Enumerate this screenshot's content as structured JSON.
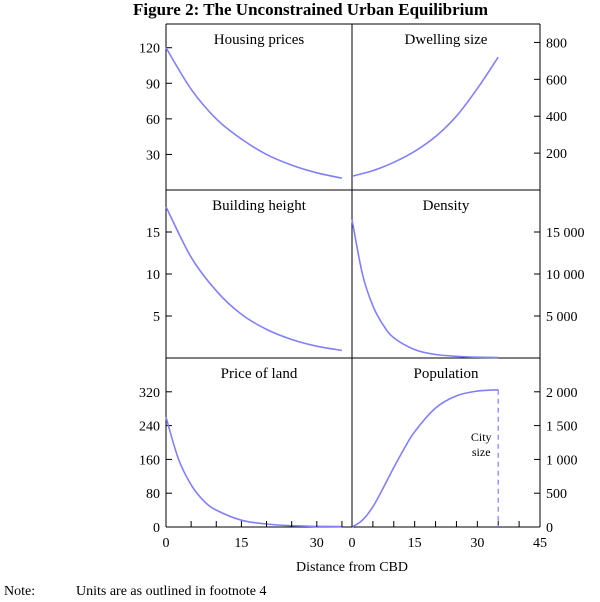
{
  "figure": {
    "title": "Figure 2: The Unconstrained Urban Equilibrium",
    "xlabel": "Distance from CBD",
    "note_label": "Note:",
    "note_text": "Units are as outlined in footnote 4",
    "line_color": "#8080ff",
    "axis_color": "#000000"
  },
  "chart_data": [
    {
      "type": "line",
      "title": "Housing prices",
      "y_axis_side": "left",
      "ylim": [
        0,
        140
      ],
      "yticks": [
        30,
        60,
        90,
        120
      ],
      "ytick_labels": [
        "30",
        "60",
        "90",
        "120"
      ],
      "xlim": [
        0,
        37
      ],
      "series": [
        {
          "x": [
            0,
            5,
            10,
            15,
            20,
            25,
            30,
            35
          ],
          "y": [
            120,
            85,
            60,
            43,
            30,
            21,
            14.5,
            10
          ]
        }
      ]
    },
    {
      "type": "line",
      "title": "Dwelling size",
      "y_axis_side": "right",
      "ylim": [
        0,
        900
      ],
      "yticks": [
        200,
        400,
        600,
        800
      ],
      "ytick_labels": [
        "200",
        "400",
        "600",
        "800"
      ],
      "xlim": [
        0,
        45
      ],
      "series": [
        {
          "x": [
            0,
            5,
            10,
            15,
            20,
            25,
            30,
            35
          ],
          "y": [
            75,
            105,
            150,
            210,
            290,
            400,
            550,
            720
          ]
        }
      ]
    },
    {
      "type": "line",
      "title": "Building height",
      "y_axis_side": "left",
      "ylim": [
        0,
        20
      ],
      "yticks": [
        5,
        10,
        15
      ],
      "ytick_labels": [
        "5",
        "10",
        "15"
      ],
      "xlim": [
        0,
        37
      ],
      "series": [
        {
          "x": [
            0,
            5,
            10,
            15,
            20,
            25,
            30,
            35
          ],
          "y": [
            18,
            12,
            8,
            5.2,
            3.4,
            2.2,
            1.4,
            0.9
          ]
        }
      ]
    },
    {
      "type": "line",
      "title": "Density",
      "y_axis_side": "right",
      "ylim": [
        0,
        20000
      ],
      "yticks": [
        5000,
        10000,
        15000
      ],
      "ytick_labels": [
        "5 000",
        "10 000",
        "15 000"
      ],
      "xlim": [
        0,
        45
      ],
      "series": [
        {
          "x": [
            0,
            2.5,
            5,
            7.5,
            10,
            15,
            20,
            25,
            30,
            35
          ],
          "y": [
            16500,
            10000,
            6200,
            3900,
            2400,
            1000,
            420,
            200,
            100,
            60
          ]
        }
      ]
    },
    {
      "type": "line",
      "title": "Price of land",
      "y_axis_side": "left",
      "ylim": [
        0,
        400
      ],
      "yticks": [
        0,
        80,
        160,
        240,
        320
      ],
      "ytick_labels": [
        "0",
        "80",
        "160",
        "240",
        "320"
      ],
      "xlim": [
        0,
        37
      ],
      "xticks": [
        0,
        15,
        30
      ],
      "xtick_labels": [
        "0",
        "15",
        "30"
      ],
      "series": [
        {
          "x": [
            0,
            2.5,
            5,
            7.5,
            10,
            15,
            20,
            25,
            30,
            35
          ],
          "y": [
            260,
            160,
            100,
            62,
            40,
            16,
            7,
            3,
            1.5,
            1
          ]
        }
      ]
    },
    {
      "type": "line",
      "title": "Population",
      "y_axis_side": "right",
      "ylim": [
        0,
        2500
      ],
      "yticks": [
        0,
        500,
        1000,
        1500,
        2000
      ],
      "ytick_labels": [
        "0",
        "500",
        "1 000",
        "1 500",
        "2 000"
      ],
      "xlim": [
        0,
        45
      ],
      "xticks": [
        0,
        15,
        30,
        45
      ],
      "xtick_labels": [
        "0",
        "15",
        "30",
        "45"
      ],
      "annotation": {
        "text": [
          "City",
          "size"
        ],
        "x": 35
      },
      "series": [
        {
          "x": [
            0,
            2.5,
            5,
            7.5,
            10,
            12.5,
            15,
            20,
            25,
            30,
            35
          ],
          "y": [
            0,
            100,
            300,
            580,
            880,
            1160,
            1410,
            1760,
            1940,
            2010,
            2030
          ]
        }
      ]
    }
  ]
}
